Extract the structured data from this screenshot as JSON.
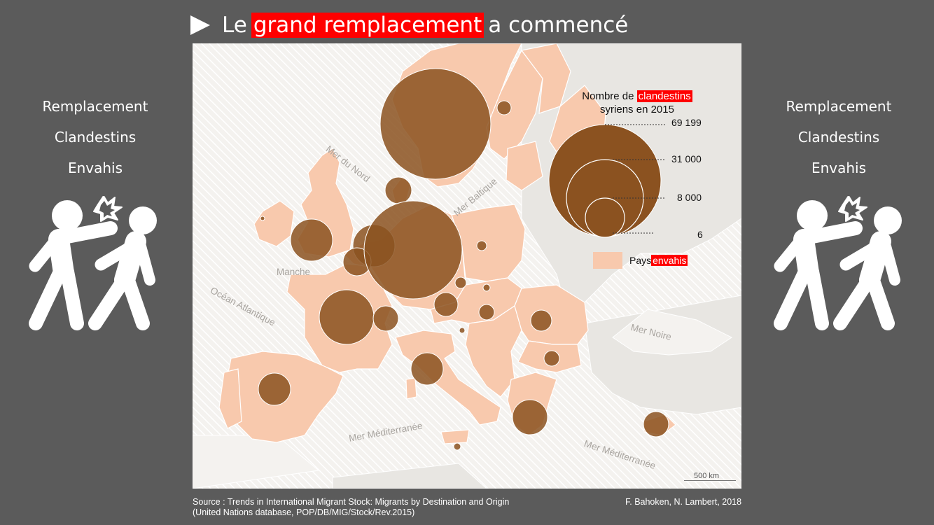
{
  "title": {
    "before": "Le",
    "highlight": "grand remplacement",
    "after": "a commencé"
  },
  "side_words": [
    "Remplacement",
    "Clandestins",
    "Envahis"
  ],
  "icons": {
    "play": "play-icon",
    "fight": "punch-fight-icon"
  },
  "colors": {
    "background": "#5b5b5b",
    "highlight": "#ff0000",
    "country": "#f8c9ad",
    "bubble": "#8b5220",
    "sea": "#efedea"
  },
  "map": {
    "legend": {
      "title_before": "Nombre de",
      "title_highlight": "clandestins",
      "title_after": "syriens en 2015",
      "values": [
        "69 199",
        "31 000",
        "8 000",
        "6"
      ],
      "pays_before": "Pays",
      "pays_highlight": "envahis"
    },
    "seas": {
      "mer_du_nord": "Mer du Nord",
      "mer_baltique": "Mer Baltique",
      "manche": "Manche",
      "ocean_atlantique": "Océan Atlantique",
      "mer_noire": "Mer Noire",
      "mer_mediterranee_1": "Mer Méditerranée",
      "mer_mediterranee_2": "Mer Méditerranée"
    },
    "scale": "500 km"
  },
  "source": {
    "line1": "Source : Trends in International Migrant Stock: Migrants by Destination and Origin",
    "line2": "(United Nations database, POP/DB/MIG/Stock/Rev.2015)"
  },
  "credit": "F. Bahoken, N. Lambert, 2018"
}
